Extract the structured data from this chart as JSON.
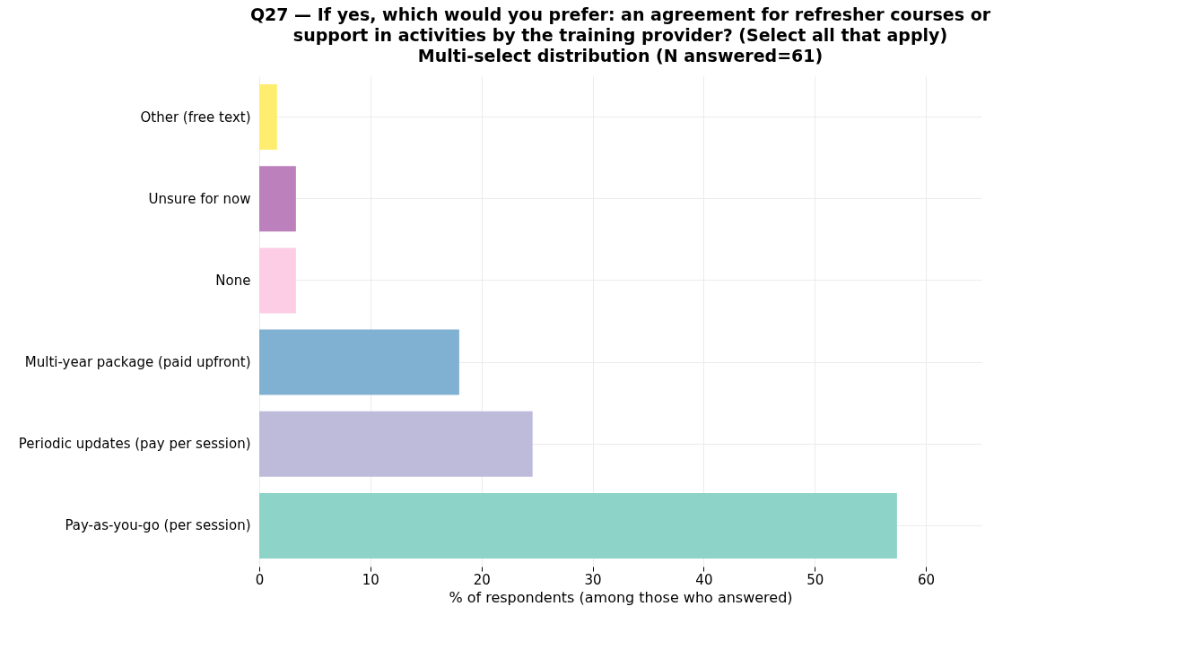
{
  "chart_data": {
    "type": "bar",
    "orientation": "horizontal",
    "title": "Q27 — If yes, which would you prefer: an agreement for refresher courses or\nsupport in activities by the training provider? (Select all that apply)\nMulti-select distribution (N answered=61)",
    "xlabel": "% of respondents (among those who answered)",
    "categories": [
      "Other (free text)",
      "Unsure for now",
      "None",
      "Multi-year package (paid upfront)",
      "Periodic updates (pay per session)",
      "Pay-as-you-go (per session)"
    ],
    "values": [
      1.6,
      3.3,
      3.3,
      18.0,
      24.6,
      57.4
    ],
    "colors": [
      "#ffed6f",
      "#bc80bd",
      "#fccde5",
      "#80b1d3",
      "#bebada",
      "#8dd3c7"
    ],
    "xlim": [
      0,
      65
    ],
    "xticks": [
      0,
      10,
      20,
      30,
      40,
      50,
      60
    ],
    "grid": true,
    "legend": false
  }
}
